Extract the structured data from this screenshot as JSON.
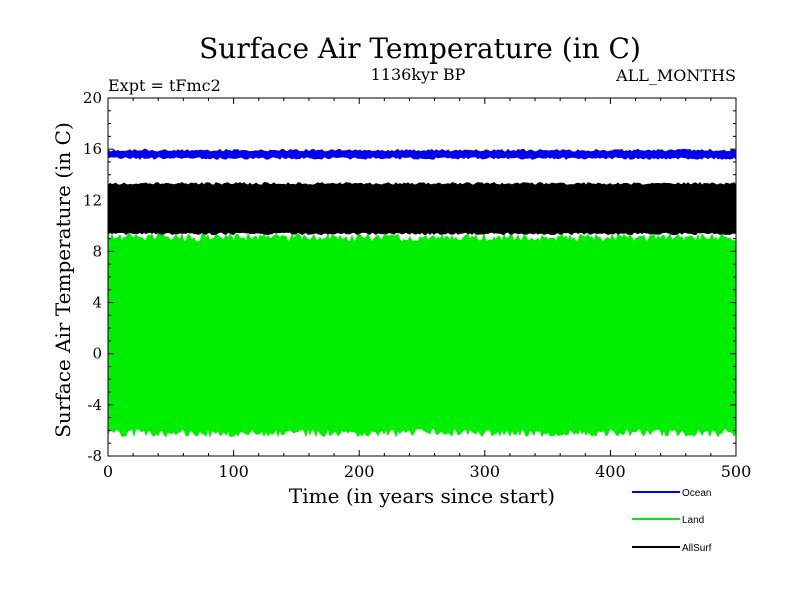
{
  "chart_data": {
    "type": "line",
    "title": "Surface Air Temperature (in C)",
    "subtitle": "1136kyr BP",
    "experiment_label": "Expt = tFmc2",
    "months_label": "ALL_MONTHS",
    "xlabel": "Time (in years since start)",
    "ylabel": "Surface Air Temperature (in C)",
    "xlim": [
      0,
      500
    ],
    "ylim": [
      -8,
      20
    ],
    "x_ticks": [
      0,
      100,
      200,
      300,
      400,
      500
    ],
    "y_ticks": [
      -8,
      -4,
      0,
      4,
      8,
      12,
      16,
      20
    ],
    "grid": false,
    "legend_position": "bottom-right",
    "series": [
      {
        "name": "Land",
        "color": "#00ee00",
        "approx_min": -6.5,
        "approx_max": 9.4,
        "x_range": [
          0,
          500
        ]
      },
      {
        "name": "AllSurf",
        "color": "#000000",
        "approx_min": 9.3,
        "approx_max": 13.4,
        "x_range": [
          0,
          500
        ]
      },
      {
        "name": "Ocean",
        "color": "#0000ee",
        "approx_min": 15.2,
        "approx_max": 16.0,
        "x_range": [
          0,
          500
        ]
      }
    ],
    "legend": [
      {
        "name": "Ocean",
        "color": "#0000ee"
      },
      {
        "name": "Land",
        "color": "#00ee00"
      },
      {
        "name": "AllSurf",
        "color": "#000000"
      }
    ]
  }
}
